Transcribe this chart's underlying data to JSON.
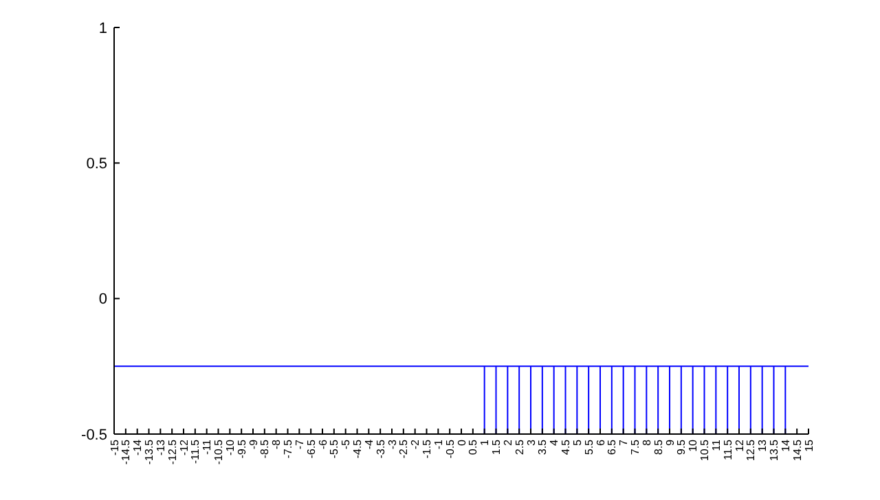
{
  "chart_data": {
    "type": "line",
    "xlim": [
      -15,
      15
    ],
    "ylim": [
      -0.5,
      1
    ],
    "xticks": [
      -15,
      -14.5,
      -14,
      -13.5,
      -13,
      -12.5,
      -12,
      -11.5,
      -11,
      -10.5,
      -10,
      -9.5,
      -9,
      -8.5,
      -8,
      -7.5,
      -7,
      -6.5,
      -6,
      -5.5,
      -5,
      -4.5,
      -4,
      -3.5,
      -3,
      -2.5,
      -2,
      -1.5,
      -1,
      -0.5,
      0,
      0.5,
      1,
      1.5,
      2,
      2.5,
      3,
      3.5,
      4,
      4.5,
      5,
      5.5,
      6,
      6.5,
      7,
      7.5,
      8,
      8.5,
      9,
      9.5,
      10,
      10.5,
      11,
      11.5,
      12,
      12.5,
      13,
      13.5,
      14,
      14.5,
      15
    ],
    "yticks": [
      -0.5,
      0,
      0.5,
      1
    ],
    "grid": false,
    "marker": "none",
    "line_style": "solid",
    "series": [
      {
        "color": "#0000ff",
        "x": [
          -15,
          15
        ],
        "values": [
          -0.25,
          -0.25
        ]
      },
      {
        "type": "bar",
        "color": "#0000ff",
        "x": [
          1,
          1.5,
          2,
          2.5,
          3,
          3.5,
          4,
          4.5,
          5,
          5.5,
          6,
          6.5,
          7,
          7.5,
          8,
          8.5,
          9,
          9.5,
          10,
          10.5,
          11,
          11.5,
          12,
          12.5,
          13,
          13.5,
          14
        ],
        "base": [
          -0.5,
          -0.5,
          -0.5,
          -0.5,
          -0.5,
          -0.5,
          -0.5,
          -0.5,
          -0.5,
          -0.5,
          -0.5,
          -0.5,
          -0.5,
          -0.5,
          -0.5,
          -0.5,
          -0.5,
          -0.5,
          -0.5,
          -0.5,
          -0.5,
          -0.5,
          -0.5,
          -0.5,
          -0.5,
          -0.5,
          -0.5
        ],
        "values": [
          0.25,
          0.25,
          0.25,
          0.25,
          0.25,
          0.25,
          0.25,
          0.25,
          0.25,
          0.25,
          0.25,
          0.25,
          0.25,
          0.25,
          0.25,
          0.25,
          0.25,
          0.25,
          0.25,
          0.25,
          0.25,
          0.25,
          0.25,
          0.25,
          0.25,
          0.25,
          0.25
        ]
      }
    ]
  }
}
